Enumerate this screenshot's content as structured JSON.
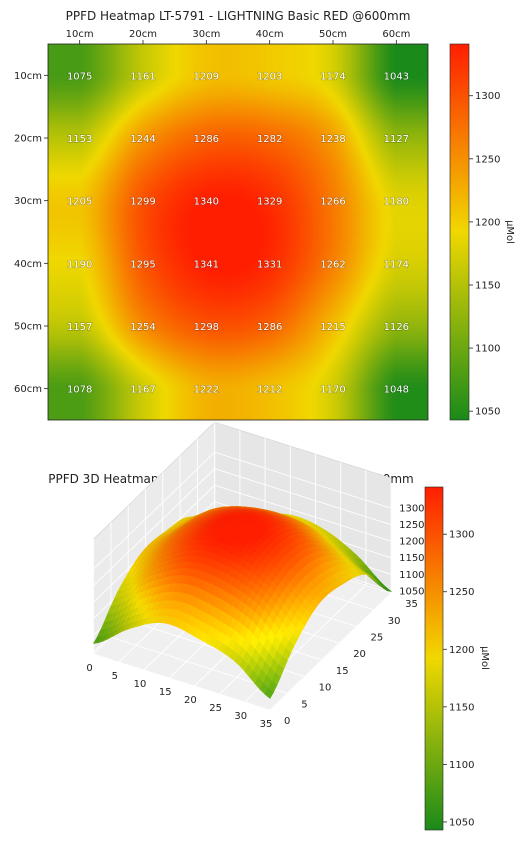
{
  "chart_data": [
    {
      "type": "heatmap",
      "title": "PPFD Heatmap LT-5791 - LIGHTNING Basic RED @600mm",
      "x_labels": [
        "10cm",
        "20cm",
        "30cm",
        "40cm",
        "50cm",
        "60cm"
      ],
      "y_labels": [
        "10cm",
        "20cm",
        "30cm",
        "40cm",
        "50cm",
        "60cm"
      ],
      "values": [
        [
          1075,
          1161,
          1209,
          1203,
          1174,
          1043
        ],
        [
          1153,
          1244,
          1286,
          1282,
          1238,
          1127
        ],
        [
          1205,
          1299,
          1340,
          1329,
          1266,
          1180
        ],
        [
          1190,
          1295,
          1341,
          1331,
          1262,
          1174
        ],
        [
          1157,
          1254,
          1298,
          1286,
          1215,
          1126
        ],
        [
          1078,
          1167,
          1222,
          1212,
          1170,
          1048
        ]
      ],
      "colorbar_label": "μMol",
      "colorbar_ticks": [
        1050,
        1100,
        1150,
        1200,
        1250,
        1300
      ],
      "vmin": 1043,
      "vmax": 1341,
      "colormap": [
        "#1a8a1a",
        "#f0d800",
        "#ff1e00"
      ]
    },
    {
      "type": "surface3d",
      "title": "PPFD 3D Heatmap LT-5791 - LIGHTNING Basic RED @600mm",
      "x_ticks": [
        0,
        5,
        10,
        15,
        20,
        25,
        30,
        35
      ],
      "y_ticks": [
        0,
        5,
        10,
        15,
        20,
        25,
        30,
        35
      ],
      "z_ticks": [
        1050,
        1100,
        1150,
        1200,
        1250,
        1300
      ],
      "zlim": [
        1043,
        1341
      ],
      "colorbar_label": "μMol",
      "colorbar_ticks": [
        1050,
        1100,
        1150,
        1200,
        1250,
        1300
      ],
      "surface_source": "heatmap values interpolated on a 36x36 grid"
    }
  ]
}
